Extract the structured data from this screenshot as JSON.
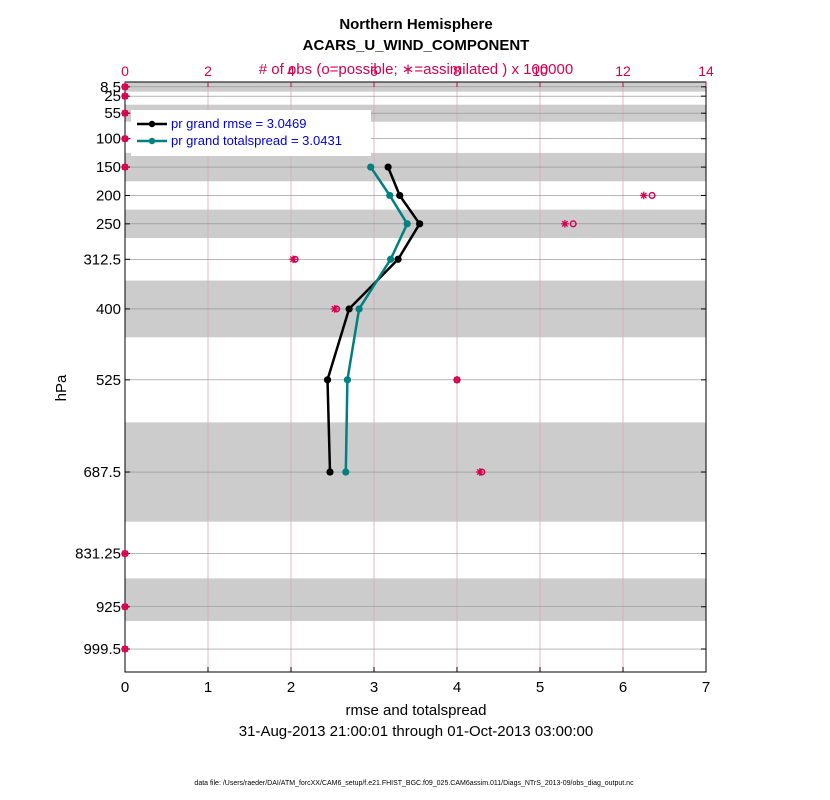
{
  "chart_data": {
    "type": "line",
    "title": "Northern Hemisphere",
    "subtitle": "ACARS_U_WIND_COMPONENT",
    "top_axis_label": "# of obs (o=possible; ∗=assimilated ) x 100000",
    "xlabel": "rmse and totalspread",
    "date_range": "31-Aug-2013 21:00:01 through 01-Oct-2013 03:00:00",
    "ylabel": "hPa",
    "footer": "data file: /Users/raeder/DAI/ATM_forcXX/CAM6_setup/f.e21.FHIST_BGC.f09_025.CAM6assim.011/Diags_NTrS_2013-09/obs_diag_output.nc",
    "xlim": [
      0,
      7
    ],
    "xticks": [
      "0",
      "1",
      "2",
      "3",
      "4",
      "5",
      "6",
      "7"
    ],
    "top_xlim": [
      0,
      14
    ],
    "top_xticks": [
      "0",
      "2",
      "4",
      "6",
      "8",
      "10",
      "12",
      "14"
    ],
    "y_levels": [
      8.5,
      25,
      55,
      100,
      150,
      200,
      250,
      312.5,
      400,
      525,
      687.5,
      831.25,
      925,
      999.5
    ],
    "y_tick_labels": [
      "8.5",
      "25",
      "55",
      "100",
      "150",
      "200",
      "250",
      "312.5",
      "400",
      "525",
      "687.5",
      "831.25",
      "925",
      "999.5"
    ],
    "ylim": [
      0,
      1040
    ],
    "y_reversed": true,
    "shaded_bands": [
      [
        0,
        17
      ],
      [
        40,
        70
      ],
      [
        125,
        175
      ],
      [
        225,
        275
      ],
      [
        350,
        450
      ],
      [
        600,
        775
      ],
      [
        875,
        950
      ]
    ],
    "series": [
      {
        "name": "pr grand rmse = 3.0469",
        "color": "#000000",
        "levels": [
          150,
          200,
          250,
          312.5,
          400,
          525,
          687.5
        ],
        "values": [
          3.17,
          3.31,
          3.55,
          3.29,
          2.7,
          2.44,
          2.47
        ]
      },
      {
        "name": "pr grand totalspread = 3.0431",
        "color": "#008080",
        "levels": [
          150,
          200,
          250,
          312.5,
          400,
          525,
          687.5
        ],
        "values": [
          2.96,
          3.19,
          3.4,
          3.2,
          2.82,
          2.68,
          2.66
        ]
      }
    ],
    "obs_counts": {
      "color": "#d6004e",
      "levels": [
        8.5,
        25,
        55,
        100,
        150,
        200,
        250,
        312.5,
        400,
        525,
        687.5,
        831.25,
        925,
        999.5
      ],
      "possible": [
        0,
        0,
        0,
        0,
        0,
        12.7,
        10.8,
        4.1,
        5.1,
        8.0,
        8.6,
        0,
        0,
        0
      ],
      "assimilated": [
        0,
        0,
        0,
        0,
        0,
        12.5,
        10.6,
        4.05,
        5.05,
        8.0,
        8.55,
        0,
        0,
        0
      ]
    }
  }
}
